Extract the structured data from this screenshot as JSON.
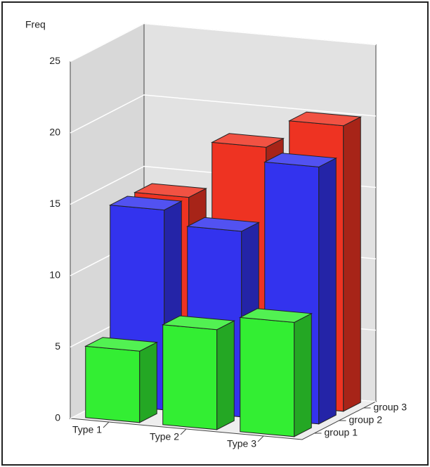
{
  "chart_data": {
    "type": "bar3d",
    "y_label": "Freq",
    "categories": [
      "Type 1",
      "Type 2",
      "Type 3"
    ],
    "series": [
      {
        "name": "group 1",
        "color": "#33ee33",
        "values": [
          5,
          7,
          8
        ]
      },
      {
        "name": "group 2",
        "color": "#3333ee",
        "values": [
          14,
          13,
          18
        ]
      },
      {
        "name": "group 3",
        "color": "#ee3322",
        "values": [
          14,
          18,
          20
        ]
      }
    ],
    "ylim": [
      0,
      25
    ],
    "yticks": [
      0,
      5,
      10,
      15,
      20,
      25
    ],
    "grid": true
  }
}
